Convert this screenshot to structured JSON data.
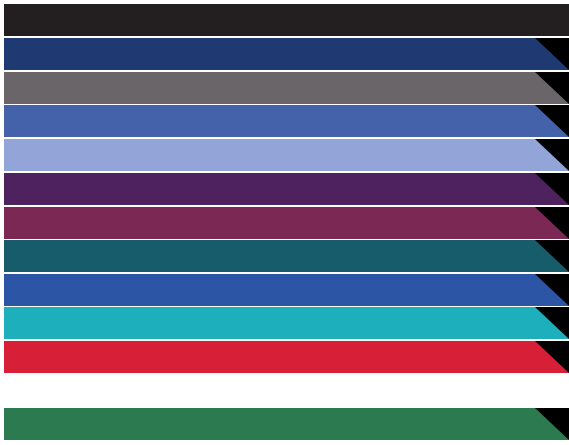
{
  "swatches": [
    {
      "name": "black",
      "color": "#231F20",
      "shadow": false
    },
    {
      "name": "navy",
      "color": "#1F3A72",
      "shadow": true
    },
    {
      "name": "gray",
      "color": "#696569",
      "shadow": true
    },
    {
      "name": "royal-blue",
      "color": "#4362A9",
      "shadow": true
    },
    {
      "name": "periwinkle",
      "color": "#93A5D8",
      "shadow": true
    },
    {
      "name": "purple",
      "color": "#4E225E",
      "shadow": true
    },
    {
      "name": "maroon",
      "color": "#7B2855",
      "shadow": true
    },
    {
      "name": "teal",
      "color": "#175C6B",
      "shadow": true
    },
    {
      "name": "cobalt",
      "color": "#2D55A6",
      "shadow": true
    },
    {
      "name": "turquoise",
      "color": "#1DAFBC",
      "shadow": true
    },
    {
      "name": "red",
      "color": "#D72037",
      "shadow": true
    },
    {
      "name": "white",
      "color": "#FFFFFF",
      "shadow": false
    },
    {
      "name": "green",
      "color": "#2B7A50",
      "shadow": true
    }
  ]
}
